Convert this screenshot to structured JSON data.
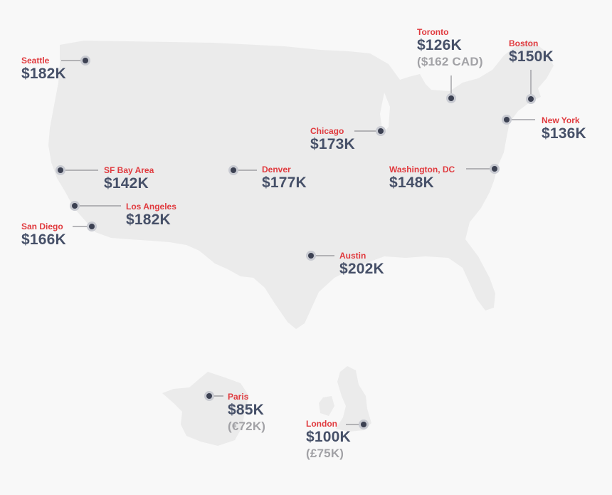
{
  "colors": {
    "background": "#f8f8f8",
    "land": "#ebebeb",
    "city_label": "#e03a3e",
    "salary_text": "#465068",
    "local_currency_text": "#a2a2a6",
    "marker_core": "#3c4152",
    "marker_ring": "#c9cbd2",
    "leader_line": "#8f8f95"
  },
  "regions": [
    "United States",
    "France",
    "United Kingdom"
  ],
  "cities": [
    {
      "id": "seattle",
      "name": "Seattle",
      "salary": "$182K"
    },
    {
      "id": "sf-bay-area",
      "name": "SF Bay Area",
      "salary": "$142K"
    },
    {
      "id": "los-angeles",
      "name": "Los Angeles",
      "salary": "$182K"
    },
    {
      "id": "san-diego",
      "name": "San Diego",
      "salary": "$166K"
    },
    {
      "id": "denver",
      "name": "Denver",
      "salary": "$177K"
    },
    {
      "id": "chicago",
      "name": "Chicago",
      "salary": "$173K"
    },
    {
      "id": "austin",
      "name": "Austin",
      "salary": "$202K"
    },
    {
      "id": "washington-dc",
      "name": "Washington, DC",
      "salary": "$148K"
    },
    {
      "id": "toronto",
      "name": "Toronto",
      "salary": "$126K",
      "local": "($162 CAD)"
    },
    {
      "id": "boston",
      "name": "Boston",
      "salary": "$150K"
    },
    {
      "id": "new-york",
      "name": "New York",
      "salary": "$136K"
    },
    {
      "id": "paris",
      "name": "Paris",
      "salary": "$85K",
      "local": "(€72K)"
    },
    {
      "id": "london",
      "name": "London",
      "salary": "$100K",
      "local": "(£75K)"
    }
  ]
}
